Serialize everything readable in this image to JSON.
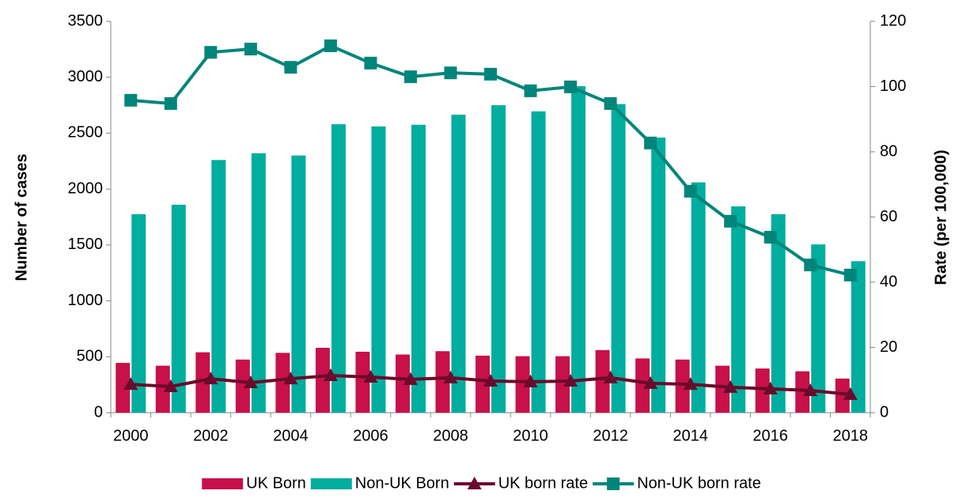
{
  "chart_data": {
    "type": "bar",
    "categories": [
      "2000",
      null,
      "2002",
      null,
      "2004",
      null,
      "2006",
      null,
      "2008",
      null,
      "2010",
      null,
      "2012",
      null,
      "2014",
      null,
      "2016",
      null,
      "2018"
    ],
    "y_label": "Number of cases",
    "y2_label": "Rate (per 100,000)",
    "ylim": [
      0,
      3500
    ],
    "yticks": [
      0,
      500,
      1000,
      1500,
      2000,
      2500,
      3000,
      3500
    ],
    "y2lim": [
      0,
      120
    ],
    "y2ticks": [
      0,
      20,
      40,
      60,
      80,
      100,
      120
    ],
    "grid": false,
    "legend": "bottom",
    "series": [
      {
        "name": "UK Born",
        "type": "bar",
        "color": "#c8104a",
        "values": [
          445,
          420,
          540,
          475,
          535,
          580,
          545,
          520,
          550,
          510,
          505,
          505,
          560,
          485,
          475,
          420,
          395,
          370,
          305
        ]
      },
      {
        "name": "Non-UK Born",
        "type": "bar",
        "color": "#00ad9e",
        "values": [
          1775,
          1860,
          2260,
          2320,
          2300,
          2580,
          2560,
          2575,
          2665,
          2750,
          2695,
          2920,
          2760,
          2460,
          2060,
          1845,
          1775,
          1505,
          1355
        ]
      },
      {
        "name": "UK born rate",
        "type": "line",
        "axis": "y2",
        "marker": "triangle",
        "color": "#6b0a2a",
        "values": [
          8.7,
          8.0,
          10.4,
          9.2,
          10.4,
          11.4,
          10.9,
          10.2,
          10.7,
          9.7,
          9.5,
          9.7,
          10.7,
          9.0,
          8.7,
          7.8,
          7.3,
          6.8,
          5.6
        ]
      },
      {
        "name": "Non-UK born rate",
        "type": "line",
        "axis": "y2",
        "marker": "square",
        "color": "#00857a",
        "values": [
          95.8,
          94.8,
          110.5,
          111.5,
          105.9,
          112.5,
          107.2,
          103.0,
          104.2,
          103.8,
          98.7,
          99.9,
          94.8,
          82.7,
          67.9,
          58.7,
          53.8,
          45.3,
          42.2
        ]
      }
    ]
  }
}
